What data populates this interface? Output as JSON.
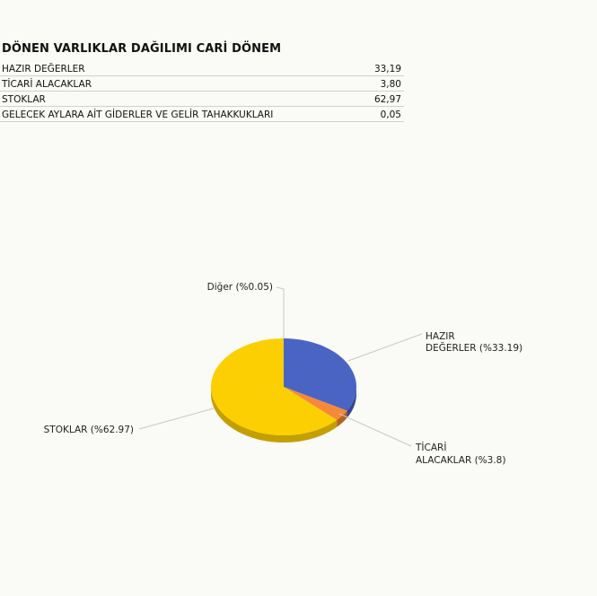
{
  "title": "DÖNEN VARLIKLAR DAĞILIMI CARİ DÖNEM",
  "table": [
    {
      "label": "HAZIR DEĞERLER",
      "value": "33,19"
    },
    {
      "label": "TİCARİ ALACAKLAR",
      "value": "3,80"
    },
    {
      "label": "STOKLAR",
      "value": "62,97"
    },
    {
      "label": "GELECEK AYLARA AİT GİDERLER VE GELİR TAHAKKUKLARI",
      "value": "0,05"
    }
  ],
  "chart_data": {
    "type": "pie",
    "categories": [
      "HAZIR DEĞERLER",
      "TİCARİ ALACAKLAR",
      "STOKLAR",
      "Diğer"
    ],
    "values": [
      33.19,
      3.8,
      62.97,
      0.05
    ],
    "slice_labels": [
      [
        "HAZIR",
        "DEĞERLER (%33.19)"
      ],
      [
        "TİCARİ",
        "ALACAKLAR (%3.8)"
      ],
      [
        "STOKLAR (%62.97)"
      ],
      [
        "Diğer (%0.05)"
      ]
    ],
    "colors": [
      "#4a64c4",
      "#f5893a",
      "#fbcf02",
      "#8fbf3f"
    ],
    "side_colors": [
      "#34478f",
      "#b3621f",
      "#c49f00",
      "#6a9029"
    ]
  }
}
